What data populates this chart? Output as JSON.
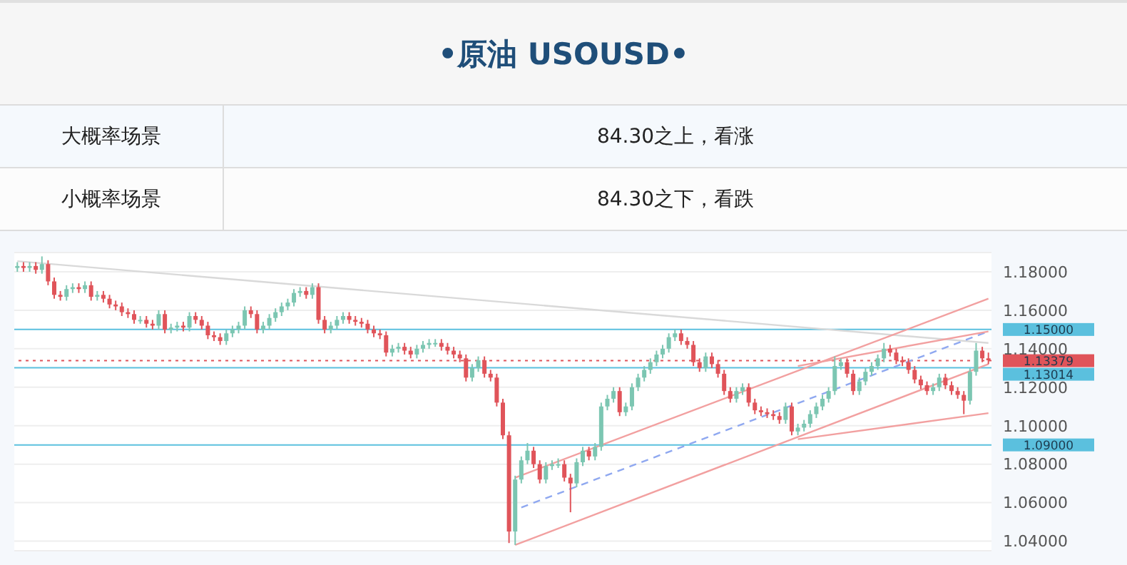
{
  "chart_data": {
    "type": "candlestick",
    "title": "•原油  USOUSD•",
    "annotations": [
      "大概率场景",
      "84.30之上，看涨",
      "小概率场景",
      "84.30之下，看跌"
    ],
    "categories": [
      null,
      null,
      null,
      null,
      null,
      null,
      null,
      null,
      null,
      null,
      null,
      null,
      null,
      null,
      null,
      null,
      null,
      null,
      null,
      null,
      null,
      null,
      null,
      null,
      null,
      null,
      null,
      null,
      null,
      null,
      null,
      null,
      null,
      null,
      null,
      null,
      null,
      null,
      null,
      null,
      null,
      null,
      null,
      null,
      null,
      null,
      null,
      null,
      null,
      null,
      null,
      null,
      null,
      null,
      null,
      null,
      null,
      null,
      null,
      null,
      null,
      null,
      null,
      null,
      null,
      null,
      null,
      null,
      null,
      null,
      null,
      null,
      null,
      null,
      null,
      null,
      null,
      null,
      null,
      null,
      null,
      null,
      null,
      null,
      null,
      null,
      null,
      null,
      null,
      null,
      null,
      null,
      null,
      null,
      null,
      null,
      null,
      null,
      null,
      null,
      null,
      null,
      null,
      null,
      null,
      null,
      null,
      null,
      null,
      null,
      null,
      null,
      null,
      null,
      null,
      null,
      null,
      null,
      null,
      null,
      null,
      null,
      null,
      null,
      null,
      null,
      null,
      null,
      null,
      null,
      null,
      null,
      null,
      null,
      null,
      null,
      null,
      null,
      null,
      null,
      null,
      null,
      null,
      null,
      null,
      null,
      null,
      null,
      null,
      null,
      null,
      null,
      null,
      null,
      null,
      null,
      null,
      null,
      null
    ],
    "ohlc": [
      [
        1.182,
        1.185,
        1.18,
        1.183
      ],
      [
        1.183,
        1.185,
        1.18,
        1.182
      ],
      [
        1.182,
        1.185,
        1.18,
        1.183
      ],
      [
        1.183,
        1.185,
        1.179,
        1.181
      ],
      [
        1.181,
        1.188,
        1.179,
        1.184
      ],
      [
        1.184,
        1.186,
        1.173,
        1.175
      ],
      [
        1.175,
        1.177,
        1.166,
        1.168
      ],
      [
        1.168,
        1.17,
        1.165,
        1.167
      ],
      [
        1.167,
        1.173,
        1.165,
        1.171
      ],
      [
        1.171,
        1.174,
        1.169,
        1.172
      ],
      [
        1.172,
        1.174,
        1.169,
        1.171
      ],
      [
        1.171,
        1.175,
        1.169,
        1.173
      ],
      [
        1.173,
        1.175,
        1.165,
        1.167
      ],
      [
        1.167,
        1.17,
        1.165,
        1.168
      ],
      [
        1.168,
        1.17,
        1.164,
        1.166
      ],
      [
        1.166,
        1.168,
        1.161,
        1.163
      ],
      [
        1.163,
        1.165,
        1.16,
        1.162
      ],
      [
        1.162,
        1.164,
        1.157,
        1.159
      ],
      [
        1.159,
        1.161,
        1.156,
        1.158
      ],
      [
        1.158,
        1.16,
        1.153,
        1.155
      ],
      [
        1.155,
        1.157,
        1.153,
        1.155
      ],
      [
        1.155,
        1.157,
        1.151,
        1.153
      ],
      [
        1.153,
        1.155,
        1.15,
        1.152
      ],
      [
        1.152,
        1.16,
        1.15,
        1.158
      ],
      [
        1.158,
        1.16,
        1.148,
        1.15
      ],
      [
        1.15,
        1.153,
        1.148,
        1.151
      ],
      [
        1.151,
        1.154,
        1.149,
        1.152
      ],
      [
        1.152,
        1.154,
        1.149,
        1.151
      ],
      [
        1.151,
        1.159,
        1.149,
        1.157
      ],
      [
        1.157,
        1.159,
        1.153,
        1.155
      ],
      [
        1.155,
        1.157,
        1.15,
        1.152
      ],
      [
        1.152,
        1.154,
        1.145,
        1.147
      ],
      [
        1.147,
        1.149,
        1.144,
        1.146
      ],
      [
        1.146,
        1.148,
        1.142,
        1.144
      ],
      [
        1.144,
        1.15,
        1.142,
        1.148
      ],
      [
        1.148,
        1.152,
        1.146,
        1.15
      ],
      [
        1.15,
        1.154,
        1.148,
        1.152
      ],
      [
        1.152,
        1.162,
        1.15,
        1.16
      ],
      [
        1.16,
        1.162,
        1.156,
        1.158
      ],
      [
        1.158,
        1.16,
        1.148,
        1.15
      ],
      [
        1.15,
        1.154,
        1.148,
        1.152
      ],
      [
        1.152,
        1.158,
        1.15,
        1.156
      ],
      [
        1.156,
        1.161,
        1.154,
        1.159
      ],
      [
        1.159,
        1.164,
        1.157,
        1.162
      ],
      [
        1.162,
        1.166,
        1.16,
        1.164
      ],
      [
        1.164,
        1.171,
        1.162,
        1.169
      ],
      [
        1.169,
        1.172,
        1.167,
        1.17
      ],
      [
        1.17,
        1.172,
        1.166,
        1.168
      ],
      [
        1.168,
        1.174,
        1.166,
        1.172
      ],
      [
        1.172,
        1.174,
        1.153,
        1.155
      ],
      [
        1.155,
        1.157,
        1.148,
        1.15
      ],
      [
        1.15,
        1.154,
        1.148,
        1.152
      ],
      [
        1.152,
        1.157,
        1.15,
        1.155
      ],
      [
        1.155,
        1.159,
        1.153,
        1.157
      ],
      [
        1.157,
        1.159,
        1.153,
        1.155
      ],
      [
        1.155,
        1.157,
        1.152,
        1.154
      ],
      [
        1.154,
        1.156,
        1.151,
        1.153
      ],
      [
        1.153,
        1.155,
        1.148,
        1.15
      ],
      [
        1.15,
        1.152,
        1.146,
        1.148
      ],
      [
        1.148,
        1.15,
        1.145,
        1.147
      ],
      [
        1.147,
        1.149,
        1.136,
        1.138
      ],
      [
        1.138,
        1.142,
        1.136,
        1.14
      ],
      [
        1.14,
        1.143,
        1.138,
        1.141
      ],
      [
        1.141,
        1.143,
        1.137,
        1.139
      ],
      [
        1.139,
        1.141,
        1.135,
        1.137
      ],
      [
        1.137,
        1.142,
        1.135,
        1.14
      ],
      [
        1.14,
        1.144,
        1.138,
        1.142
      ],
      [
        1.142,
        1.145,
        1.14,
        1.143
      ],
      [
        1.143,
        1.145,
        1.141,
        1.143
      ],
      [
        1.143,
        1.145,
        1.139,
        1.141
      ],
      [
        1.141,
        1.143,
        1.137,
        1.139
      ],
      [
        1.139,
        1.141,
        1.135,
        1.137
      ],
      [
        1.137,
        1.139,
        1.133,
        1.135
      ],
      [
        1.135,
        1.137,
        1.123,
        1.125
      ],
      [
        1.125,
        1.132,
        1.123,
        1.13
      ],
      [
        1.13,
        1.136,
        1.128,
        1.134
      ],
      [
        1.134,
        1.136,
        1.125,
        1.127
      ],
      [
        1.127,
        1.129,
        1.123,
        1.125
      ],
      [
        1.125,
        1.127,
        1.11,
        1.112
      ],
      [
        1.112,
        1.114,
        1.093,
        1.095
      ],
      [
        1.095,
        1.097,
        1.039,
        1.045
      ],
      [
        1.045,
        1.074,
        1.038,
        1.072
      ],
      [
        1.072,
        1.084,
        1.07,
        1.082
      ],
      [
        1.082,
        1.091,
        1.08,
        1.087
      ],
      [
        1.087,
        1.089,
        1.078,
        1.08
      ],
      [
        1.08,
        1.082,
        1.07,
        1.072
      ],
      [
        1.072,
        1.081,
        1.07,
        1.079
      ],
      [
        1.079,
        1.082,
        1.077,
        1.08
      ],
      [
        1.08,
        1.083,
        1.078,
        1.08
      ],
      [
        1.08,
        1.082,
        1.071,
        1.073
      ],
      [
        1.073,
        1.075,
        1.055,
        1.07
      ],
      [
        1.07,
        1.083,
        1.068,
        1.081
      ],
      [
        1.081,
        1.089,
        1.079,
        1.087
      ],
      [
        1.087,
        1.089,
        1.082,
        1.084
      ],
      [
        1.084,
        1.091,
        1.082,
        1.089
      ],
      [
        1.089,
        1.112,
        1.087,
        1.11
      ],
      [
        1.11,
        1.116,
        1.108,
        1.114
      ],
      [
        1.114,
        1.12,
        1.112,
        1.118
      ],
      [
        1.118,
        1.12,
        1.105,
        1.107
      ],
      [
        1.107,
        1.112,
        1.105,
        1.11
      ],
      [
        1.11,
        1.122,
        1.108,
        1.12
      ],
      [
        1.12,
        1.127,
        1.118,
        1.125
      ],
      [
        1.125,
        1.131,
        1.123,
        1.129
      ],
      [
        1.129,
        1.135,
        1.127,
        1.133
      ],
      [
        1.133,
        1.139,
        1.131,
        1.137
      ],
      [
        1.137,
        1.142,
        1.135,
        1.14
      ],
      [
        1.14,
        1.148,
        1.138,
        1.146
      ],
      [
        1.146,
        1.15,
        1.144,
        1.148
      ],
      [
        1.148,
        1.15,
        1.142,
        1.144
      ],
      [
        1.144,
        1.146,
        1.14,
        1.142
      ],
      [
        1.142,
        1.144,
        1.131,
        1.133
      ],
      [
        1.133,
        1.135,
        1.128,
        1.13
      ],
      [
        1.13,
        1.138,
        1.128,
        1.136
      ],
      [
        1.136,
        1.138,
        1.13,
        1.132
      ],
      [
        1.132,
        1.134,
        1.125,
        1.127
      ],
      [
        1.127,
        1.129,
        1.116,
        1.118
      ],
      [
        1.118,
        1.12,
        1.112,
        1.114
      ],
      [
        1.114,
        1.12,
        1.112,
        1.118
      ],
      [
        1.118,
        1.122,
        1.116,
        1.12
      ],
      [
        1.12,
        1.122,
        1.11,
        1.112
      ],
      [
        1.112,
        1.114,
        1.106,
        1.108
      ],
      [
        1.108,
        1.11,
        1.105,
        1.107
      ],
      [
        1.107,
        1.109,
        1.104,
        1.106
      ],
      [
        1.106,
        1.108,
        1.103,
        1.105
      ],
      [
        1.105,
        1.107,
        1.101,
        1.103
      ],
      [
        1.103,
        1.112,
        1.101,
        1.11
      ],
      [
        1.11,
        1.112,
        1.095,
        1.097
      ],
      [
        1.097,
        1.101,
        1.095,
        1.099
      ],
      [
        1.099,
        1.103,
        1.097,
        1.101
      ],
      [
        1.101,
        1.108,
        1.099,
        1.106
      ],
      [
        1.106,
        1.112,
        1.104,
        1.11
      ],
      [
        1.11,
        1.116,
        1.108,
        1.114
      ],
      [
        1.114,
        1.12,
        1.112,
        1.118
      ],
      [
        1.118,
        1.136,
        1.116,
        1.131
      ],
      [
        1.131,
        1.135,
        1.129,
        1.133
      ],
      [
        1.133,
        1.135,
        1.125,
        1.127
      ],
      [
        1.127,
        1.129,
        1.116,
        1.118
      ],
      [
        1.118,
        1.125,
        1.116,
        1.123
      ],
      [
        1.123,
        1.13,
        1.121,
        1.128
      ],
      [
        1.128,
        1.133,
        1.126,
        1.131
      ],
      [
        1.131,
        1.137,
        1.129,
        1.135
      ],
      [
        1.135,
        1.143,
        1.133,
        1.14
      ],
      [
        1.14,
        1.142,
        1.136,
        1.138
      ],
      [
        1.138,
        1.14,
        1.132,
        1.134
      ],
      [
        1.134,
        1.136,
        1.131,
        1.133
      ],
      [
        1.133,
        1.135,
        1.127,
        1.129
      ],
      [
        1.129,
        1.131,
        1.122,
        1.124
      ],
      [
        1.124,
        1.126,
        1.119,
        1.121
      ],
      [
        1.121,
        1.123,
        1.116,
        1.118
      ],
      [
        1.118,
        1.122,
        1.116,
        1.12
      ],
      [
        1.12,
        1.127,
        1.118,
        1.125
      ],
      [
        1.125,
        1.127,
        1.119,
        1.121
      ],
      [
        1.121,
        1.123,
        1.116,
        1.118
      ],
      [
        1.118,
        1.12,
        1.114,
        1.116
      ],
      [
        1.116,
        1.118,
        1.106,
        1.113
      ],
      [
        1.113,
        1.13,
        1.111,
        1.128
      ],
      [
        1.128,
        1.143,
        1.126,
        1.139
      ],
      [
        1.139,
        1.141,
        1.133,
        1.135
      ],
      [
        1.135,
        1.138,
        1.132,
        1.134
      ]
    ],
    "series": [
      {
        "type": "line",
        "color": "#d9d9d9",
        "values": [
          1.1855,
          null,
          null,
          null,
          null,
          null,
          null,
          null,
          null,
          null,
          null,
          null,
          null,
          null,
          null,
          null,
          null,
          null,
          null,
          null,
          null,
          null,
          null,
          null,
          null,
          null,
          null,
          null,
          null,
          null,
          null,
          null,
          null,
          null,
          null,
          null,
          null,
          null,
          null,
          null,
          null,
          null,
          null,
          null,
          null,
          null,
          null,
          null,
          null,
          null,
          null,
          null,
          null,
          null,
          null,
          null,
          null,
          null,
          null,
          null,
          null,
          null,
          null,
          null,
          null,
          null,
          null,
          null,
          null,
          null,
          null,
          null,
          null,
          null,
          null,
          null,
          null,
          null,
          null,
          null,
          null,
          null,
          null,
          null,
          null,
          null,
          null,
          null,
          null,
          null,
          null,
          null,
          null,
          null,
          null,
          null,
          null,
          null,
          null,
          null,
          null,
          null,
          null,
          null,
          null,
          null,
          null,
          null,
          null,
          null,
          null,
          null,
          null,
          null,
          null,
          null,
          null,
          null,
          null,
          null,
          null,
          null,
          null,
          null,
          null,
          null,
          null,
          null,
          null,
          null,
          null,
          null,
          null,
          null,
          null,
          null,
          null,
          null,
          null,
          null,
          null,
          null,
          null,
          null,
          null,
          null,
          null,
          null,
          null,
          null,
          null,
          null,
          null,
          null,
          null,
          null,
          null,
          null,
          1.143
        ]
      },
      {
        "type": "line",
        "color": "#f2a0a0",
        "values": [
          null,
          null,
          null,
          null,
          null,
          null,
          null,
          null,
          null,
          null,
          null,
          null,
          null,
          null,
          null,
          null,
          null,
          null,
          null,
          null,
          null,
          null,
          null,
          null,
          null,
          null,
          null,
          null,
          null,
          null,
          null,
          null,
          null,
          null,
          null,
          null,
          null,
          null,
          null,
          null,
          null,
          null,
          null,
          null,
          null,
          null,
          null,
          null,
          null,
          null,
          null,
          null,
          null,
          null,
          null,
          null,
          null,
          null,
          null,
          null,
          null,
          null,
          null,
          null,
          null,
          null,
          null,
          null,
          null,
          null,
          null,
          null,
          null,
          null,
          null,
          null,
          null,
          null,
          null,
          null,
          null,
          1.073,
          null,
          null,
          null,
          null,
          null,
          null,
          null,
          null,
          null,
          null,
          null,
          null,
          null,
          null,
          null,
          null,
          null,
          null,
          null,
          null,
          null,
          null,
          null,
          null,
          null,
          null,
          null,
          null,
          null,
          null,
          null,
          null,
          null,
          null,
          null,
          null,
          null,
          null,
          null,
          null,
          null,
          null,
          null,
          null,
          null,
          null,
          null,
          null,
          null,
          null,
          null,
          null,
          null,
          null,
          null,
          null,
          null,
          null,
          null,
          null,
          null,
          null,
          null,
          null,
          null,
          null,
          null,
          null,
          null,
          null,
          null,
          null,
          null,
          null,
          null,
          null,
          1.166
        ]
      },
      {
        "type": "line",
        "color": "#f2a0a0",
        "values": [
          null,
          null,
          null,
          null,
          null,
          null,
          null,
          null,
          null,
          null,
          null,
          null,
          null,
          null,
          null,
          null,
          null,
          null,
          null,
          null,
          null,
          null,
          null,
          null,
          null,
          null,
          null,
          null,
          null,
          null,
          null,
          null,
          null,
          null,
          null,
          null,
          null,
          null,
          null,
          null,
          null,
          null,
          null,
          null,
          null,
          null,
          null,
          null,
          null,
          null,
          null,
          null,
          null,
          null,
          null,
          null,
          null,
          null,
          null,
          null,
          null,
          null,
          null,
          null,
          null,
          null,
          null,
          null,
          null,
          null,
          null,
          null,
          null,
          null,
          null,
          null,
          null,
          null,
          null,
          null,
          null,
          1.038,
          null,
          null,
          null,
          null,
          null,
          null,
          null,
          null,
          null,
          null,
          null,
          null,
          null,
          null,
          null,
          null,
          null,
          null,
          null,
          null,
          null,
          null,
          null,
          null,
          null,
          null,
          null,
          null,
          null,
          null,
          null,
          null,
          null,
          null,
          null,
          null,
          null,
          null,
          null,
          null,
          null,
          null,
          null,
          null,
          null,
          null,
          null,
          null,
          null,
          null,
          null,
          null,
          null,
          null,
          null,
          null,
          null,
          null,
          null,
          null,
          null,
          null,
          null,
          null,
          null,
          null,
          null,
          null,
          null,
          null,
          null,
          null,
          null,
          null,
          null,
          null,
          1.132
        ]
      },
      {
        "type": "line",
        "color": "#8fa8f0",
        "line_style": "dashed",
        "values": [
          null,
          null,
          null,
          null,
          null,
          null,
          null,
          null,
          null,
          null,
          null,
          null,
          null,
          null,
          null,
          null,
          null,
          null,
          null,
          null,
          null,
          null,
          null,
          null,
          null,
          null,
          null,
          null,
          null,
          null,
          null,
          null,
          null,
          null,
          null,
          null,
          null,
          null,
          null,
          null,
          null,
          null,
          null,
          null,
          null,
          null,
          null,
          null,
          null,
          null,
          null,
          null,
          null,
          null,
          null,
          null,
          null,
          null,
          null,
          null,
          null,
          null,
          null,
          null,
          null,
          null,
          null,
          null,
          null,
          null,
          null,
          null,
          null,
          null,
          null,
          null,
          null,
          null,
          null,
          null,
          null,
          null,
          1.0575,
          null,
          null,
          null,
          null,
          null,
          null,
          null,
          null,
          null,
          null,
          null,
          null,
          null,
          null,
          null,
          null,
          null,
          null,
          null,
          null,
          null,
          null,
          null,
          null,
          null,
          null,
          null,
          null,
          null,
          null,
          null,
          null,
          null,
          null,
          null,
          null,
          null,
          null,
          null,
          null,
          null,
          null,
          null,
          null,
          null,
          null,
          null,
          null,
          null,
          null,
          null,
          null,
          null,
          null,
          null,
          null,
          null,
          null,
          null,
          null,
          null,
          null,
          null,
          null,
          null,
          null,
          null,
          null,
          null,
          null,
          null,
          null,
          null,
          null,
          null,
          1.149
        ]
      },
      {
        "type": "line",
        "color": "#f2a0a0",
        "values": [
          null,
          null,
          null,
          null,
          null,
          null,
          null,
          null,
          null,
          null,
          null,
          null,
          null,
          null,
          null,
          null,
          null,
          null,
          null,
          null,
          null,
          null,
          null,
          null,
          null,
          null,
          null,
          null,
          null,
          null,
          null,
          null,
          null,
          null,
          null,
          null,
          null,
          null,
          null,
          null,
          null,
          null,
          null,
          null,
          null,
          null,
          null,
          null,
          null,
          null,
          null,
          null,
          null,
          null,
          null,
          null,
          null,
          null,
          null,
          null,
          null,
          null,
          null,
          null,
          null,
          null,
          null,
          null,
          null,
          null,
          null,
          null,
          null,
          null,
          null,
          null,
          null,
          null,
          null,
          null,
          null,
          null,
          null,
          null,
          null,
          null,
          null,
          null,
          null,
          null,
          null,
          null,
          null,
          null,
          null,
          null,
          null,
          null,
          null,
          null,
          null,
          null,
          null,
          null,
          null,
          null,
          null,
          null,
          null,
          null,
          null,
          null,
          null,
          null,
          null,
          null,
          null,
          null,
          null,
          null,
          null,
          null,
          null,
          null,
          null,
          null,
          null,
          1.131,
          null,
          null,
          null,
          null,
          null,
          null,
          null,
          null,
          null,
          null,
          null,
          null,
          null,
          null,
          null,
          null,
          null,
          null,
          null,
          null,
          null,
          null,
          null,
          null,
          null,
          null,
          null,
          null,
          null,
          null,
          1.149
        ]
      },
      {
        "type": "line",
        "color": "#f2a0a0",
        "values": [
          null,
          null,
          null,
          null,
          null,
          null,
          null,
          null,
          null,
          null,
          null,
          null,
          null,
          null,
          null,
          null,
          null,
          null,
          null,
          null,
          null,
          null,
          null,
          null,
          null,
          null,
          null,
          null,
          null,
          null,
          null,
          null,
          null,
          null,
          null,
          null,
          null,
          null,
          null,
          null,
          null,
          null,
          null,
          null,
          null,
          null,
          null,
          null,
          null,
          null,
          null,
          null,
          null,
          null,
          null,
          null,
          null,
          null,
          null,
          null,
          null,
          null,
          null,
          null,
          null,
          null,
          null,
          null,
          null,
          null,
          null,
          null,
          null,
          null,
          null,
          null,
          null,
          null,
          null,
          null,
          null,
          null,
          null,
          null,
          null,
          null,
          null,
          null,
          null,
          null,
          null,
          null,
          null,
          null,
          null,
          null,
          null,
          null,
          null,
          null,
          null,
          null,
          null,
          null,
          null,
          null,
          null,
          null,
          null,
          null,
          null,
          null,
          null,
          null,
          null,
          null,
          null,
          null,
          null,
          null,
          null,
          null,
          null,
          null,
          null,
          null,
          null,
          1.093,
          null,
          null,
          null,
          null,
          null,
          null,
          null,
          null,
          null,
          null,
          null,
          null,
          null,
          null,
          null,
          null,
          null,
          null,
          null,
          null,
          null,
          null,
          null,
          null,
          null,
          null,
          null,
          null,
          null,
          null,
          1.1065
        ]
      }
    ],
    "ylim": [
      1.035,
      1.19
    ],
    "yticks": [
      {
        "value": 1.04,
        "label": "1.04000"
      },
      {
        "value": 1.06,
        "label": "1.06000"
      },
      {
        "value": 1.08,
        "label": "1.08000"
      },
      {
        "value": 1.1,
        "label": "1.10000"
      },
      {
        "value": 1.12,
        "label": "1.12000"
      },
      {
        "value": 1.14,
        "label": "1.14000"
      },
      {
        "value": 1.16,
        "label": "1.16000"
      },
      {
        "value": 1.18,
        "label": "1.18000"
      }
    ],
    "ref_lines": [
      {
        "axis": "y",
        "value": 1.15,
        "label": "1.15000",
        "color": "#5bc0de"
      },
      {
        "axis": "y",
        "value": 1.09,
        "label": "1.09000",
        "color": "#5bc0de"
      },
      {
        "axis": "y",
        "value": 1.13014,
        "label": "1.13014",
        "color": "#5bc0de"
      },
      {
        "axis": "y",
        "value": 1.13379,
        "label": "1.13379",
        "color": "#e0545a",
        "line_style": "dotted"
      }
    ],
    "grid": "y",
    "tick_labels": "y"
  }
}
